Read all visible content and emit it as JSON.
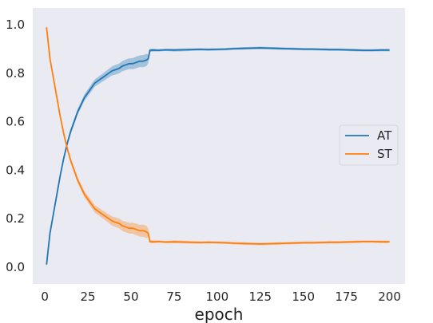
{
  "chart_data": {
    "type": "line",
    "title": "",
    "xlabel": "epoch",
    "ylabel": "",
    "xlim": [
      -7,
      209
    ],
    "ylim": [
      -0.07,
      1.07
    ],
    "x_ticks": [
      0,
      25,
      50,
      75,
      100,
      125,
      150,
      175,
      200
    ],
    "y_ticks": [
      0.0,
      0.2,
      0.4,
      0.6,
      0.8,
      1.0
    ],
    "x_tick_labels": [
      "0",
      "25",
      "50",
      "75",
      "100",
      "125",
      "150",
      "175",
      "200"
    ],
    "y_tick_labels": [
      "0.0",
      "0.2",
      "0.4",
      "0.6",
      "0.8",
      "1.0"
    ],
    "grid": false,
    "background": "#eaeaf2",
    "legend": {
      "position": "center-right",
      "entries": [
        "AT",
        "ST"
      ]
    },
    "series": [
      {
        "name": "AT",
        "color": "#1f77b4",
        "points": [
          [
            1,
            0.01
          ],
          [
            3,
            0.14
          ],
          [
            5,
            0.22
          ],
          [
            7,
            0.3
          ],
          [
            9,
            0.38
          ],
          [
            11,
            0.45
          ],
          [
            13,
            0.51
          ],
          [
            15,
            0.56
          ],
          [
            17,
            0.6
          ],
          [
            19,
            0.64
          ],
          [
            21,
            0.67
          ],
          [
            23,
            0.7
          ],
          [
            25,
            0.72
          ],
          [
            27,
            0.74
          ],
          [
            29,
            0.76
          ],
          [
            31,
            0.77
          ],
          [
            33,
            0.78
          ],
          [
            35,
            0.79
          ],
          [
            37,
            0.8
          ],
          [
            39,
            0.81
          ],
          [
            41,
            0.815
          ],
          [
            43,
            0.82
          ],
          [
            45,
            0.83
          ],
          [
            47,
            0.835
          ],
          [
            49,
            0.84
          ],
          [
            51,
            0.84
          ],
          [
            53,
            0.845
          ],
          [
            55,
            0.85
          ],
          [
            57,
            0.85
          ],
          [
            59,
            0.855
          ],
          [
            60,
            0.86
          ],
          [
            61,
            0.895
          ],
          [
            63,
            0.896
          ],
          [
            66,
            0.895
          ],
          [
            70,
            0.897
          ],
          [
            75,
            0.896
          ],
          [
            80,
            0.897
          ],
          [
            85,
            0.898
          ],
          [
            90,
            0.899
          ],
          [
            95,
            0.898
          ],
          [
            100,
            0.899
          ],
          [
            105,
            0.9
          ],
          [
            110,
            0.902
          ],
          [
            115,
            0.903
          ],
          [
            120,
            0.904
          ],
          [
            125,
            0.905
          ],
          [
            130,
            0.904
          ],
          [
            135,
            0.903
          ],
          [
            140,
            0.902
          ],
          [
            145,
            0.901
          ],
          [
            150,
            0.9
          ],
          [
            155,
            0.9
          ],
          [
            160,
            0.899
          ],
          [
            165,
            0.898
          ],
          [
            170,
            0.898
          ],
          [
            175,
            0.897
          ],
          [
            180,
            0.896
          ],
          [
            185,
            0.895
          ],
          [
            190,
            0.895
          ],
          [
            195,
            0.896
          ],
          [
            200,
            0.896
          ]
        ],
        "band_halfwidth": [
          0.01,
          0.01,
          0.01,
          0.01,
          0.01,
          0.01,
          0.01,
          0.012,
          0.012,
          0.012,
          0.013,
          0.013,
          0.014,
          0.015,
          0.015,
          0.016,
          0.016,
          0.017,
          0.018,
          0.019,
          0.02,
          0.02,
          0.021,
          0.022,
          0.022,
          0.023,
          0.024,
          0.024,
          0.025,
          0.025,
          0.018,
          0.007,
          0.006,
          0.005,
          0.005,
          0.006,
          0.006,
          0.005,
          0.005,
          0.005,
          0.005,
          0.005,
          0.005,
          0.005,
          0.005,
          0.005,
          0.005,
          0.005,
          0.005,
          0.005,
          0.005,
          0.005,
          0.005,
          0.005,
          0.005,
          0.005,
          0.005,
          0.005,
          0.005,
          0.005,
          0.005
        ]
      },
      {
        "name": "ST",
        "color": "#ff7f0e",
        "points": [
          [
            1,
            0.99
          ],
          [
            3,
            0.86
          ],
          [
            5,
            0.78
          ],
          [
            7,
            0.7
          ],
          [
            9,
            0.62
          ],
          [
            11,
            0.55
          ],
          [
            13,
            0.49
          ],
          [
            15,
            0.44
          ],
          [
            17,
            0.4
          ],
          [
            19,
            0.36
          ],
          [
            21,
            0.33
          ],
          [
            23,
            0.3
          ],
          [
            25,
            0.28
          ],
          [
            27,
            0.26
          ],
          [
            29,
            0.24
          ],
          [
            31,
            0.23
          ],
          [
            33,
            0.22
          ],
          [
            35,
            0.21
          ],
          [
            37,
            0.2
          ],
          [
            39,
            0.19
          ],
          [
            41,
            0.185
          ],
          [
            43,
            0.18
          ],
          [
            45,
            0.17
          ],
          [
            47,
            0.165
          ],
          [
            49,
            0.16
          ],
          [
            51,
            0.16
          ],
          [
            53,
            0.155
          ],
          [
            55,
            0.15
          ],
          [
            57,
            0.15
          ],
          [
            59,
            0.145
          ],
          [
            60,
            0.14
          ],
          [
            61,
            0.105
          ],
          [
            63,
            0.104
          ],
          [
            66,
            0.105
          ],
          [
            70,
            0.103
          ],
          [
            75,
            0.104
          ],
          [
            80,
            0.103
          ],
          [
            85,
            0.102
          ],
          [
            90,
            0.101
          ],
          [
            95,
            0.102
          ],
          [
            100,
            0.101
          ],
          [
            105,
            0.1
          ],
          [
            110,
            0.098
          ],
          [
            115,
            0.097
          ],
          [
            120,
            0.096
          ],
          [
            125,
            0.095
          ],
          [
            130,
            0.096
          ],
          [
            135,
            0.097
          ],
          [
            140,
            0.098
          ],
          [
            145,
            0.099
          ],
          [
            150,
            0.1
          ],
          [
            155,
            0.1
          ],
          [
            160,
            0.101
          ],
          [
            165,
            0.102
          ],
          [
            170,
            0.102
          ],
          [
            175,
            0.103
          ],
          [
            180,
            0.104
          ],
          [
            185,
            0.105
          ],
          [
            190,
            0.105
          ],
          [
            195,
            0.104
          ],
          [
            200,
            0.104
          ]
        ],
        "band_halfwidth": [
          0.01,
          0.01,
          0.01,
          0.01,
          0.01,
          0.01,
          0.01,
          0.012,
          0.012,
          0.012,
          0.013,
          0.013,
          0.014,
          0.015,
          0.015,
          0.016,
          0.016,
          0.017,
          0.018,
          0.019,
          0.02,
          0.02,
          0.021,
          0.022,
          0.022,
          0.023,
          0.024,
          0.024,
          0.025,
          0.025,
          0.018,
          0.007,
          0.006,
          0.005,
          0.005,
          0.006,
          0.006,
          0.005,
          0.005,
          0.005,
          0.005,
          0.005,
          0.005,
          0.005,
          0.005,
          0.005,
          0.005,
          0.005,
          0.005,
          0.005,
          0.005,
          0.005,
          0.005,
          0.005,
          0.005,
          0.005,
          0.005,
          0.005,
          0.005,
          0.005,
          0.005
        ]
      }
    ]
  }
}
